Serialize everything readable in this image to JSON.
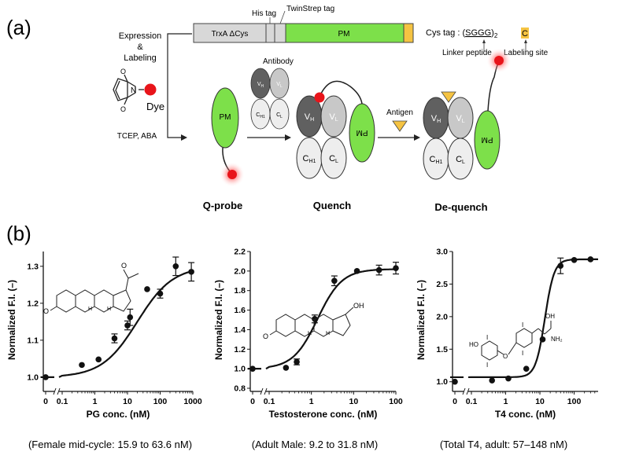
{
  "panel_a": {
    "letter": "(a)",
    "process_label_1": "Expression",
    "process_label_2": "&",
    "process_label_3": "Labeling",
    "reagent": "TCEP, ABA",
    "dye_label": "Dye",
    "construct": {
      "trxa": "TrxA ΔCys",
      "his": "His tag",
      "twinstrep": "TwinStrep tag",
      "pm": "PM",
      "cys_tag_prefix": "Cys tag : (",
      "cys_tag_seq": "SGGG",
      "cys_tag_suffix": ")",
      "cys_tag_sub": "2",
      "cys_c": "C",
      "linker": "Linker peptide",
      "labeling_site": "Labeling site"
    },
    "antibody_label": "Antibody",
    "antigen_label": "Antigen",
    "domains": {
      "vh": "V",
      "vh_sub": "H",
      "vl": "V",
      "vl_sub": "L",
      "ch": "C",
      "ch_sub": "H1",
      "cl": "C",
      "cl_sub": "L",
      "pm": "PM"
    },
    "states": [
      "Q-probe",
      "Quench",
      "De-quench"
    ],
    "colors": {
      "pm": "#7de04a",
      "dye": "#e8141a",
      "antigen": "#f5c342",
      "vh": "#606060",
      "vl": "#c8c8c8",
      "const": "#eeeeee"
    }
  },
  "panel_b": {
    "letter": "(b)",
    "captions": [
      "(Female mid-cycle: 15.9 to 63.6 nM)",
      "(Adult Male: 9.2 to 31.8 nM)",
      "(Total T4, adult: 57–148 nM)"
    ]
  },
  "chart_data": [
    {
      "type": "scatter",
      "xlabel": "PG conc. (nM)",
      "ylabel": "Normalized F.I. (–)",
      "xscale": "log",
      "xlim": [
        0.1,
        1000
      ],
      "ylim": [
        0.97,
        1.34
      ],
      "xticks": [
        "0",
        "0.1",
        "1",
        "10",
        "100",
        "1000"
      ],
      "yticks": [
        1.0,
        1.1,
        1.2,
        1.3
      ],
      "ytick_labels": [
        "1.0",
        "1.1",
        "1.2",
        "1.3"
      ],
      "points": [
        {
          "x": 0,
          "y": 1.0,
          "err": 0
        },
        {
          "x": 0.4,
          "y": 1.033,
          "err": 0
        },
        {
          "x": 1.3,
          "y": 1.048,
          "err": 0
        },
        {
          "x": 4,
          "y": 1.105,
          "err": 0.012
        },
        {
          "x": 10,
          "y": 1.14,
          "err": 0.012
        },
        {
          "x": 12,
          "y": 1.162,
          "err": 0.022
        },
        {
          "x": 40,
          "y": 1.238,
          "err": 0
        },
        {
          "x": 100,
          "y": 1.226,
          "err": 0.012
        },
        {
          "x": 300,
          "y": 1.3,
          "err": 0.025
        },
        {
          "x": 900,
          "y": 1.285,
          "err": 0.025
        }
      ],
      "fit": {
        "bottom": 1.0,
        "top": 1.3,
        "ec50": 20,
        "hill": 0.8
      }
    },
    {
      "type": "scatter",
      "xlabel": "Testosterone conc. (nM)",
      "ylabel": "Normalized F.I. (–)",
      "xscale": "log",
      "xlim": [
        0.1,
        100
      ],
      "ylim": [
        0.8,
        2.2
      ],
      "xticks": [
        "0",
        "0.1",
        "1",
        "10",
        "100"
      ],
      "yticks": [
        0.8,
        1.0,
        1.2,
        1.4,
        1.6,
        1.8,
        2.0,
        2.2
      ],
      "ytick_labels": [
        "0.8",
        "1.0",
        "1.2",
        "1.4",
        "1.6",
        "1.8",
        "2.0",
        "2.2"
      ],
      "points": [
        {
          "x": 0,
          "y": 1.0,
          "err": 0
        },
        {
          "x": 0.25,
          "y": 1.01,
          "err": 0
        },
        {
          "x": 0.45,
          "y": 1.07,
          "err": 0.03
        },
        {
          "x": 1.2,
          "y": 1.51,
          "err": 0.04
        },
        {
          "x": 3.5,
          "y": 1.9,
          "err": 0.05
        },
        {
          "x": 12,
          "y": 2.0,
          "err": 0
        },
        {
          "x": 40,
          "y": 2.01,
          "err": 0.05
        },
        {
          "x": 100,
          "y": 2.03,
          "err": 0.06
        }
      ],
      "fit": {
        "bottom": 1.0,
        "top": 2.02,
        "ec50": 1.4,
        "hill": 1.5
      }
    },
    {
      "type": "scatter",
      "xlabel": "T4 conc. (nM)",
      "ylabel": "Normalized F.I. (–)",
      "xscale": "log",
      "xlim": [
        0.1,
        500
      ],
      "ylim": [
        0.9,
        3.0
      ],
      "xticks": [
        "0",
        "0.1",
        "1",
        "10",
        "100"
      ],
      "yticks": [
        1.0,
        1.5,
        2.0,
        2.5,
        3.0
      ],
      "ytick_labels": [
        "1.0",
        "1.5",
        "2.0",
        "2.5",
        "3.0"
      ],
      "points": [
        {
          "x": 0,
          "y": 1.0,
          "err": 0
        },
        {
          "x": 0.4,
          "y": 1.02,
          "err": 0
        },
        {
          "x": 1.2,
          "y": 1.05,
          "err": 0
        },
        {
          "x": 4,
          "y": 1.2,
          "err": 0
        },
        {
          "x": 12,
          "y": 1.65,
          "err": 0
        },
        {
          "x": 40,
          "y": 2.78,
          "err": 0.12
        },
        {
          "x": 100,
          "y": 2.87,
          "err": 0
        },
        {
          "x": 300,
          "y": 2.88,
          "err": 0
        }
      ],
      "fit": {
        "bottom": 1.07,
        "top": 2.88,
        "ec50": 14,
        "hill": 3.2
      }
    }
  ]
}
